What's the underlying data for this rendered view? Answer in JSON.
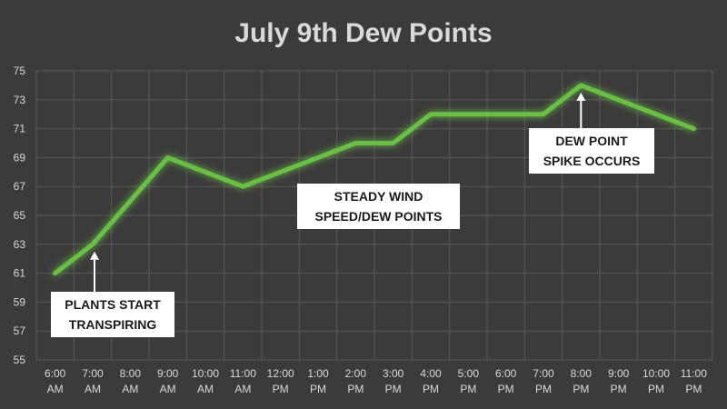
{
  "chart_data": {
    "type": "line",
    "title": "July 9th Dew Points",
    "xlabel": "",
    "ylabel": "",
    "x": [
      "6:00 AM",
      "7:00 AM",
      "8:00 AM",
      "9:00 AM",
      "10:00 AM",
      "11:00 AM",
      "12:00 PM",
      "1:00 PM",
      "2:00 PM",
      "3:00 PM",
      "4:00 PM",
      "5:00 PM",
      "6:00 PM",
      "7:00 PM",
      "8:00 PM",
      "9:00 PM",
      "10:00 PM",
      "11:00 PM"
    ],
    "x_tick_lines": [
      [
        "6:00",
        "AM"
      ],
      [
        "7:00",
        "AM"
      ],
      [
        "8:00",
        "AM"
      ],
      [
        "9:00",
        "AM"
      ],
      [
        "10:00",
        "AM"
      ],
      [
        "11:00",
        "AM"
      ],
      [
        "12:00",
        "PM"
      ],
      [
        "1:00",
        "PM"
      ],
      [
        "2:00",
        "PM"
      ],
      [
        "3:00",
        "PM"
      ],
      [
        "4:00",
        "PM"
      ],
      [
        "5:00",
        "PM"
      ],
      [
        "6:00",
        "PM"
      ],
      [
        "7:00",
        "PM"
      ],
      [
        "8:00",
        "PM"
      ],
      [
        "9:00",
        "PM"
      ],
      [
        "10:00",
        "PM"
      ],
      [
        "11:00",
        "PM"
      ]
    ],
    "series": [
      {
        "values": [
          61,
          63,
          66,
          69,
          68,
          67,
          68,
          69,
          70,
          70,
          72,
          72,
          72,
          72,
          74,
          73,
          72,
          71
        ]
      }
    ],
    "ylim": [
      55,
      75
    ],
    "yticks": [
      55,
      57,
      59,
      61,
      63,
      65,
      67,
      69,
      71,
      73,
      75
    ],
    "grid": true,
    "line_color": "#6abf45",
    "background": "#3b3b3b",
    "annotations": [
      {
        "lines": [
          "PLANTS START",
          "TRANSPIRING"
        ],
        "arrow_to_index": 1
      },
      {
        "lines": [
          "STEADY WIND",
          "SPEED/DEW POINTS"
        ]
      },
      {
        "lines": [
          "DEW POINT",
          "SPIKE OCCURS"
        ],
        "arrow_to_index": 14
      }
    ]
  }
}
